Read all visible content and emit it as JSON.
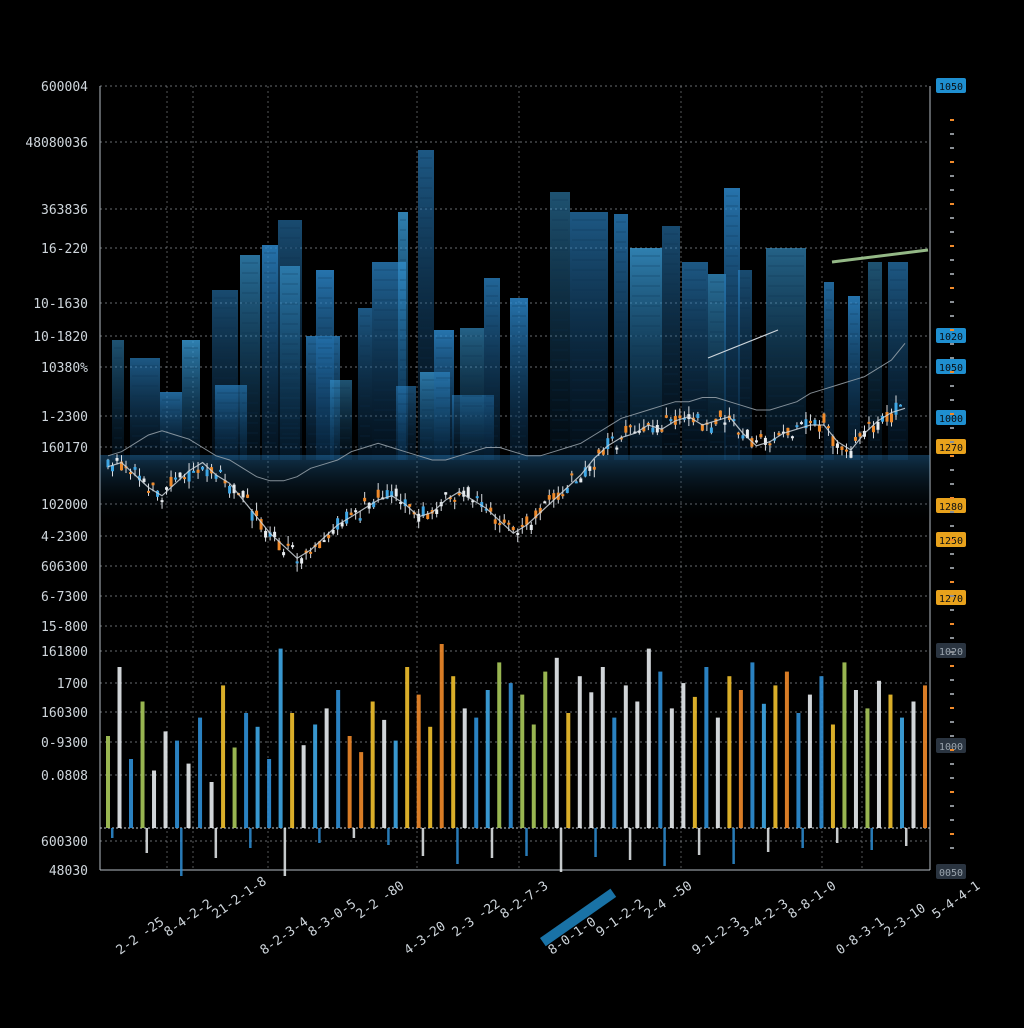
{
  "colors": {
    "background": "#000000",
    "grid": "#8a8f95",
    "blue": "#2f8fd6",
    "light_blue": "#3ea7e6",
    "orange": "#f08a2a",
    "yellow": "#f2c12e",
    "green": "#a8c95a",
    "label": "#cfd6dc",
    "badge_blue": "#1f8fd0",
    "badge_yellow": "#e8a21c"
  },
  "chart_data": {
    "type": "bar",
    "title": "",
    "xlabel": "",
    "ylabel": "",
    "grid": true,
    "y_left_labels": [
      "600004",
      "48080036",
      "363836",
      "16-220",
      "10-1630",
      "10-1820",
      "10380%",
      "1-2300",
      "160170",
      "102000",
      "4-2300",
      "606300",
      "6-7300",
      "15-800",
      "161800",
      "1700",
      "160300",
      "0-9300",
      "0.0808",
      "600300",
      "48030"
    ],
    "y_right_labels": [
      "1050",
      "1020",
      "1050",
      "1000",
      "1270",
      "1280",
      "1250",
      "1270",
      "1020",
      "1000",
      "0050"
    ],
    "x_labels": [
      "2-2 -25",
      "8-4-2-2",
      "21-2-1-8",
      "8-2-3-4",
      "8-3-0-5",
      "2-2 -80",
      "4-3-20",
      "2-3 -22",
      "8-2-7-3",
      "8-0-1-0",
      "9-1-2-2",
      "2-4 -50",
      "9-1-2-3",
      "3-4-2-3",
      "8-8-1-0",
      "0-8-3-1",
      "2-3-10",
      "5-4-4-1"
    ],
    "price_series": [
      {
        "name": "",
        "values": [
          52,
          53,
          50,
          47,
          45,
          48,
          51,
          53,
          50,
          48,
          44,
          40,
          36,
          33,
          30,
          32,
          35,
          38,
          40,
          42,
          44,
          45,
          43,
          40,
          41,
          44,
          46,
          44,
          42,
          39,
          36,
          38,
          41,
          44,
          47,
          50,
          54,
          57,
          59,
          60,
          62,
          61,
          63,
          64,
          62,
          63,
          64,
          60,
          57,
          58,
          60,
          61,
          62,
          62,
          58,
          56,
          60,
          63,
          65,
          66
        ]
      },
      {
        "name": "",
        "values": [
          45,
          46,
          48,
          50,
          51,
          50,
          49,
          47,
          45,
          44,
          42,
          40,
          39,
          39,
          40,
          42,
          43,
          44,
          46,
          47,
          48,
          47,
          46,
          45,
          44,
          44,
          45,
          46,
          47,
          47,
          46,
          45,
          45,
          46,
          47,
          48,
          50,
          52,
          54,
          55,
          56,
          57,
          58,
          58,
          59,
          59,
          58,
          57,
          56,
          56,
          57,
          58,
          60,
          61,
          62,
          63,
          64,
          66,
          68,
          72
        ]
      }
    ],
    "volume_values": [
      40,
      70,
      30,
      55,
      25,
      42,
      38,
      28,
      48,
      20,
      62,
      35,
      50,
      44,
      30,
      78,
      50,
      36,
      45,
      52,
      60,
      40,
      33,
      55,
      47,
      38,
      70,
      58,
      44,
      80,
      66,
      52,
      48,
      60,
      72,
      63,
      58,
      45,
      68,
      74,
      50,
      66,
      59,
      70,
      48,
      62,
      55,
      78,
      68,
      52,
      63,
      57,
      70,
      48,
      66,
      60,
      72,
      54,
      62,
      68,
      50,
      58,
      66,
      45,
      72,
      60,
      52,
      64,
      58,
      48,
      55,
      62
    ]
  }
}
